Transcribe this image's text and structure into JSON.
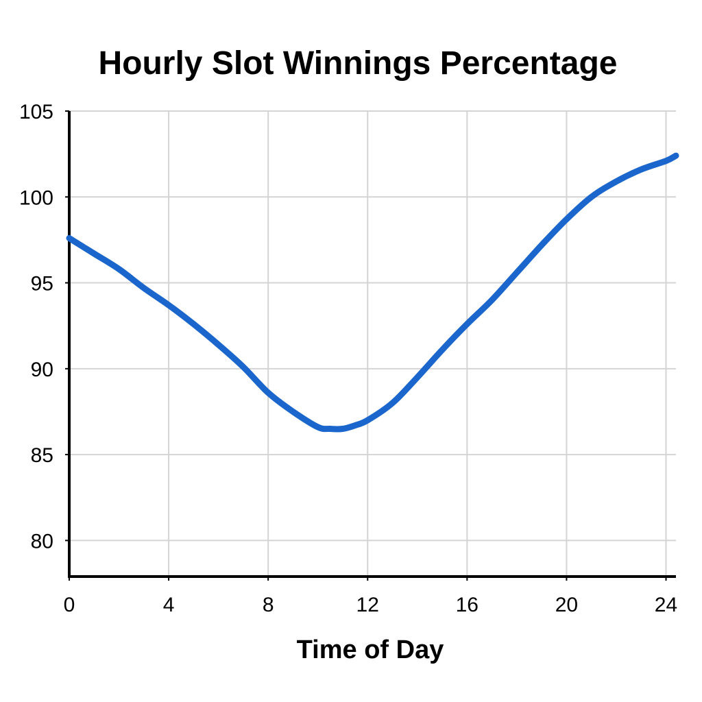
{
  "chart_data": {
    "type": "line",
    "title": "Hourly Slot Winnings Percentage",
    "xlabel": "Time of Day",
    "ylabel": "",
    "xlim": [
      0,
      24.4
    ],
    "ylim": [
      77.9,
      105
    ],
    "x_ticks": [
      "0",
      "4",
      "8",
      "12",
      "16",
      "20",
      "24"
    ],
    "y_ticks": [
      "80",
      "85",
      "90",
      "95",
      "100",
      "105"
    ],
    "grid": true,
    "legend": "none",
    "series": [
      {
        "color": "#1a66cc",
        "x": [
          0,
          1,
          2,
          3,
          4,
          5,
          6,
          7,
          8,
          9,
          10,
          10.5,
          11,
          11.5,
          12,
          13,
          14,
          15,
          16,
          17,
          18,
          19,
          20,
          21,
          22,
          23,
          24,
          24.4
        ],
        "y": [
          97.6,
          96.7,
          95.8,
          94.7,
          93.7,
          92.6,
          91.4,
          90.1,
          88.6,
          87.5,
          86.6,
          86.5,
          86.5,
          86.7,
          87.0,
          88.0,
          89.5,
          91.1,
          92.6,
          94.0,
          95.6,
          97.2,
          98.7,
          100.0,
          100.9,
          101.6,
          102.1,
          102.4
        ]
      }
    ]
  }
}
